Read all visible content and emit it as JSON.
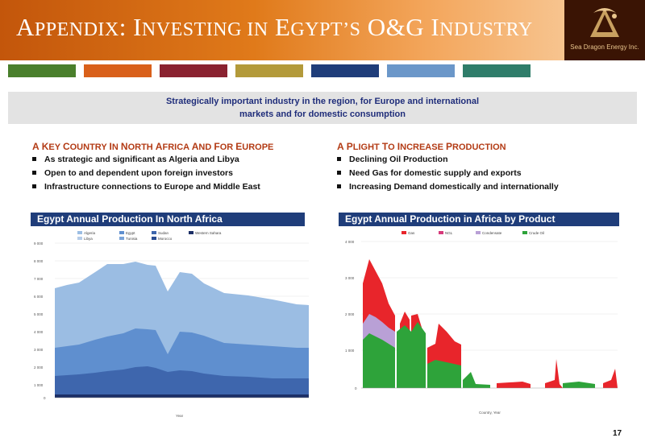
{
  "header": {
    "title_parts": [
      "A",
      "PPENDIX",
      ": I",
      "NVESTING IN",
      " E",
      "GYPT",
      "’",
      "S",
      " O&G I",
      "NDUSTRY"
    ],
    "brand_name": "Sea Dragon Energy Inc."
  },
  "stripe_colors": [
    "#4a7f2c",
    "#d9601a",
    "#8a2230",
    "#b39a3a",
    "#1f3d7a",
    "#6b97c9",
    "#2f7d6a"
  ],
  "banner": {
    "line1": "Strategically important industry in the region, for Europe and international",
    "line2": "markets and for domestic consumption"
  },
  "left_section": {
    "title": "A Key Country in North Africa and For Europe",
    "bullets": [
      "As strategic and significant as Algeria and Libya",
      "Open to and dependent upon foreign investors",
      "Infrastructure connections to Europe and Middle East"
    ]
  },
  "right_section": {
    "title": "A Plight to Increase Production",
    "bullets": [
      "Declining Oil Production",
      "Need Gas for domestic supply and exports",
      "Increasing Demand domestically and internationally"
    ]
  },
  "charts": {
    "left_title": "Egypt Annual Production In North Africa",
    "right_title": "Egypt Annual Production in Africa by Product"
  },
  "page_number": "17"
}
